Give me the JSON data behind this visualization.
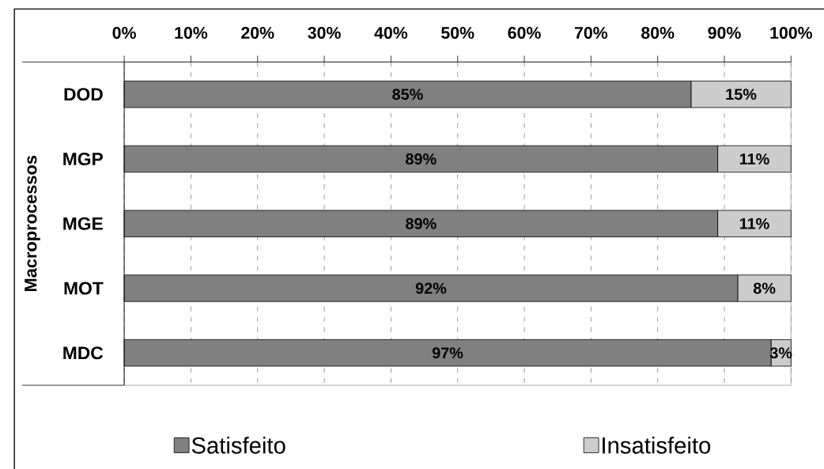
{
  "chart_data": {
    "type": "bar",
    "orientation": "horizontal",
    "stacked": true,
    "ylabel": "Macroprocessos",
    "categories": [
      "DOD",
      "MGP",
      "MGE",
      "MOT",
      "MDC"
    ],
    "series": [
      {
        "name": "Satisfeito",
        "color": "#808080",
        "values": [
          85,
          89,
          89,
          92,
          97
        ],
        "value_labels": [
          "85%",
          "89%",
          "89%",
          "92%",
          "97%"
        ]
      },
      {
        "name": "Insatisfeito",
        "color": "#cccccc",
        "values": [
          15,
          11,
          11,
          8,
          3
        ],
        "value_labels": [
          "15%",
          "11%",
          "11%",
          "8%",
          "3%"
        ]
      }
    ],
    "xlim": [
      0,
      100
    ],
    "xticks": [
      {
        "value": 0,
        "label": "0%"
      },
      {
        "value": 10,
        "label": "10%"
      },
      {
        "value": 20,
        "label": "20%"
      },
      {
        "value": 30,
        "label": "30%"
      },
      {
        "value": 40,
        "label": "40%"
      },
      {
        "value": 50,
        "label": "50%"
      },
      {
        "value": 60,
        "label": "60%"
      },
      {
        "value": 70,
        "label": "70%"
      },
      {
        "value": 80,
        "label": "80%"
      },
      {
        "value": 90,
        "label": "90%"
      },
      {
        "value": 100,
        "label": "100%"
      }
    ],
    "grid": "x",
    "legend": "bottom"
  }
}
